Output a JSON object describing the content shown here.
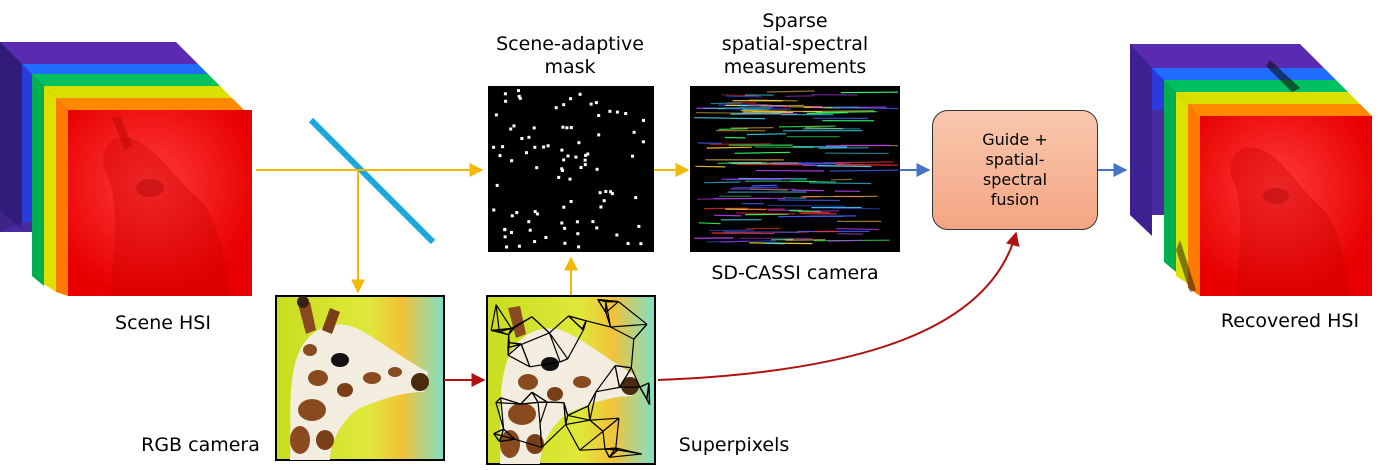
{
  "labels": {
    "scene_hsi": "Scene HSI",
    "mask_line1": "Scene-adaptive",
    "mask_line2": "mask",
    "meas_line1": "Sparse",
    "meas_line2": "spatial-spectral",
    "meas_line3": "measurements",
    "sd_cassi": "SD-CASSI camera",
    "rgb_camera": "RGB camera",
    "superpixels": "Superpixels",
    "recovered_hsi": "Recovered HSI"
  },
  "fusion": {
    "line1": "Guide +",
    "line2": "spatial-",
    "line3": "spectral",
    "line4": "fusion"
  },
  "colors": {
    "optical_path": "#f5b800",
    "guide_path": "#b01010",
    "output_path": "#4472c4",
    "beam_splitter": "#1aa7e0",
    "hsi_red": "#ff1a1a",
    "hsi_orange": "#ff7a00",
    "hsi_yellow": "#e8e800",
    "hsi_green": "#00c040",
    "hsi_blue": "#0060ff",
    "hsi_violet": "#4a2aa0"
  }
}
